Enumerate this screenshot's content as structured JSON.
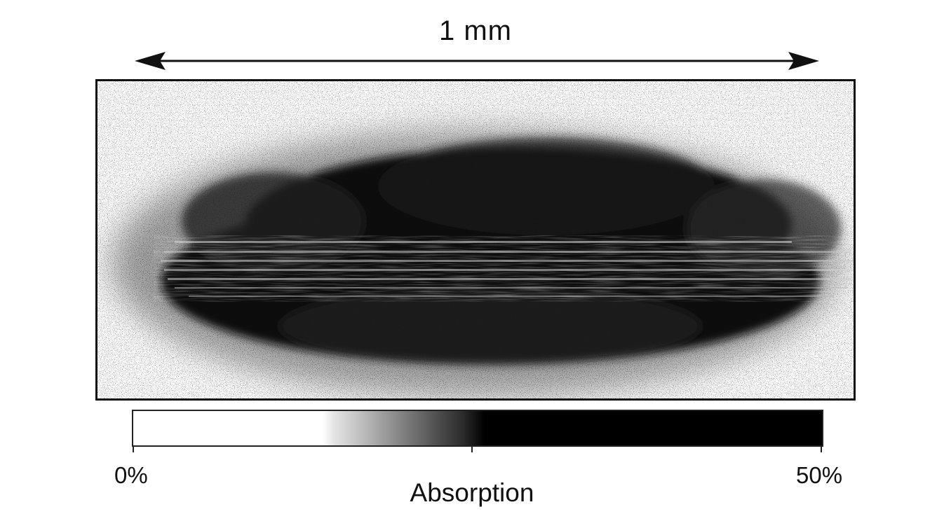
{
  "scale_bar": {
    "label": "1 mm"
  },
  "colorbar": {
    "min_label": "0%",
    "max_label": "50%",
    "title": "Absorption",
    "min_value": 0,
    "mid_value": 25,
    "max_value": 50,
    "colormap": "white-to-black (grayscale)"
  },
  "image": {
    "content": "grayscale absorption image of an elongated elliptical cloud with horizontal fringes",
    "background_color": "#ffffff",
    "foreground_color": "#000000"
  }
}
